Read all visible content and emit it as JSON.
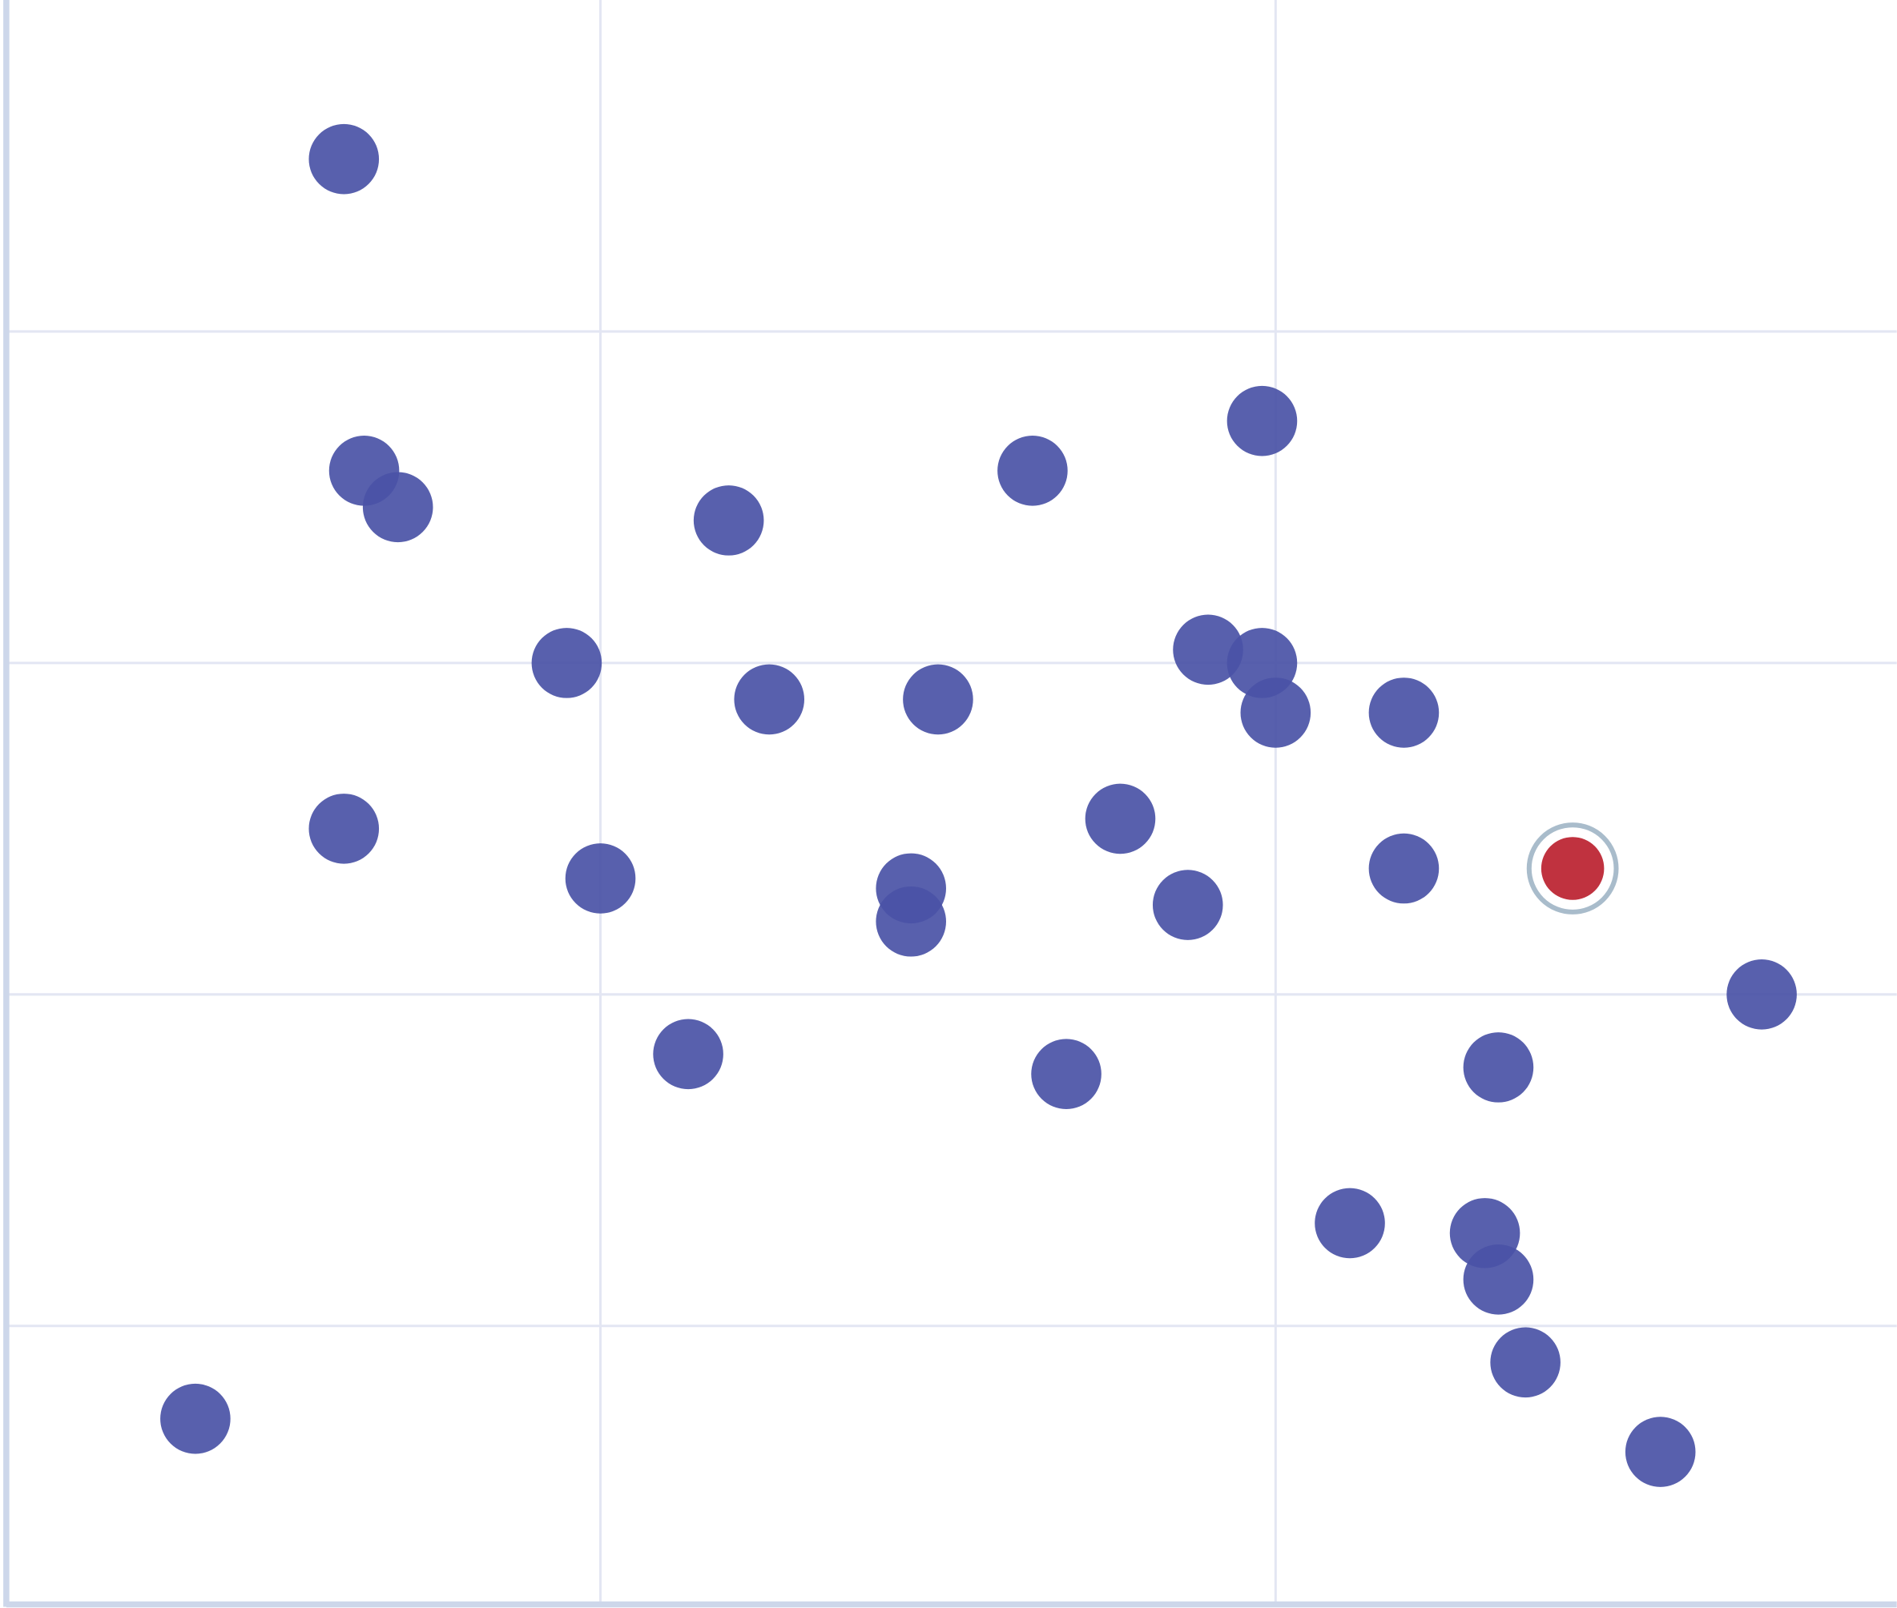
{
  "chart_data": {
    "type": "scatter",
    "title": "",
    "xlabel": "",
    "ylabel": "",
    "xlim": [
      0.12,
      2.92
    ],
    "ylim": [
      0.16,
      5.0
    ],
    "x_gridlines": [
      1,
      2
    ],
    "y_gridlines": [
      1,
      2,
      3,
      4
    ],
    "grid": true,
    "tick_labels_shown": false,
    "colors": {
      "point": "#4a52a6",
      "highlight": "#c0323f",
      "highlight_ring": "#a9bccb",
      "grid": "#e3e6f3",
      "axis": "#cdd7ea"
    },
    "points": [
      {
        "x": 0.62,
        "y": 4.52
      },
      {
        "x": 0.65,
        "y": 3.58
      },
      {
        "x": 0.7,
        "y": 3.47
      },
      {
        "x": 1.19,
        "y": 3.43
      },
      {
        "x": 1.64,
        "y": 3.58
      },
      {
        "x": 1.98,
        "y": 3.73
      },
      {
        "x": 0.95,
        "y": 3.0
      },
      {
        "x": 1.25,
        "y": 2.89
      },
      {
        "x": 1.5,
        "y": 2.89
      },
      {
        "x": 1.9,
        "y": 3.04
      },
      {
        "x": 1.98,
        "y": 3.0
      },
      {
        "x": 2.0,
        "y": 2.85
      },
      {
        "x": 2.19,
        "y": 2.85
      },
      {
        "x": 0.62,
        "y": 2.5
      },
      {
        "x": 1.0,
        "y": 2.35
      },
      {
        "x": 1.46,
        "y": 2.32
      },
      {
        "x": 1.46,
        "y": 2.22
      },
      {
        "x": 1.77,
        "y": 2.53
      },
      {
        "x": 1.87,
        "y": 2.27
      },
      {
        "x": 2.19,
        "y": 2.38
      },
      {
        "x": 2.72,
        "y": 2.0
      },
      {
        "x": 1.13,
        "y": 1.82
      },
      {
        "x": 1.69,
        "y": 1.76
      },
      {
        "x": 2.33,
        "y": 1.78
      },
      {
        "x": 2.11,
        "y": 1.31
      },
      {
        "x": 2.31,
        "y": 1.28
      },
      {
        "x": 2.33,
        "y": 1.14
      },
      {
        "x": 2.37,
        "y": 0.89
      },
      {
        "x": 0.4,
        "y": 0.72
      },
      {
        "x": 2.57,
        "y": 0.62
      }
    ],
    "highlighted_point": {
      "x": 2.44,
      "y": 2.38
    }
  }
}
